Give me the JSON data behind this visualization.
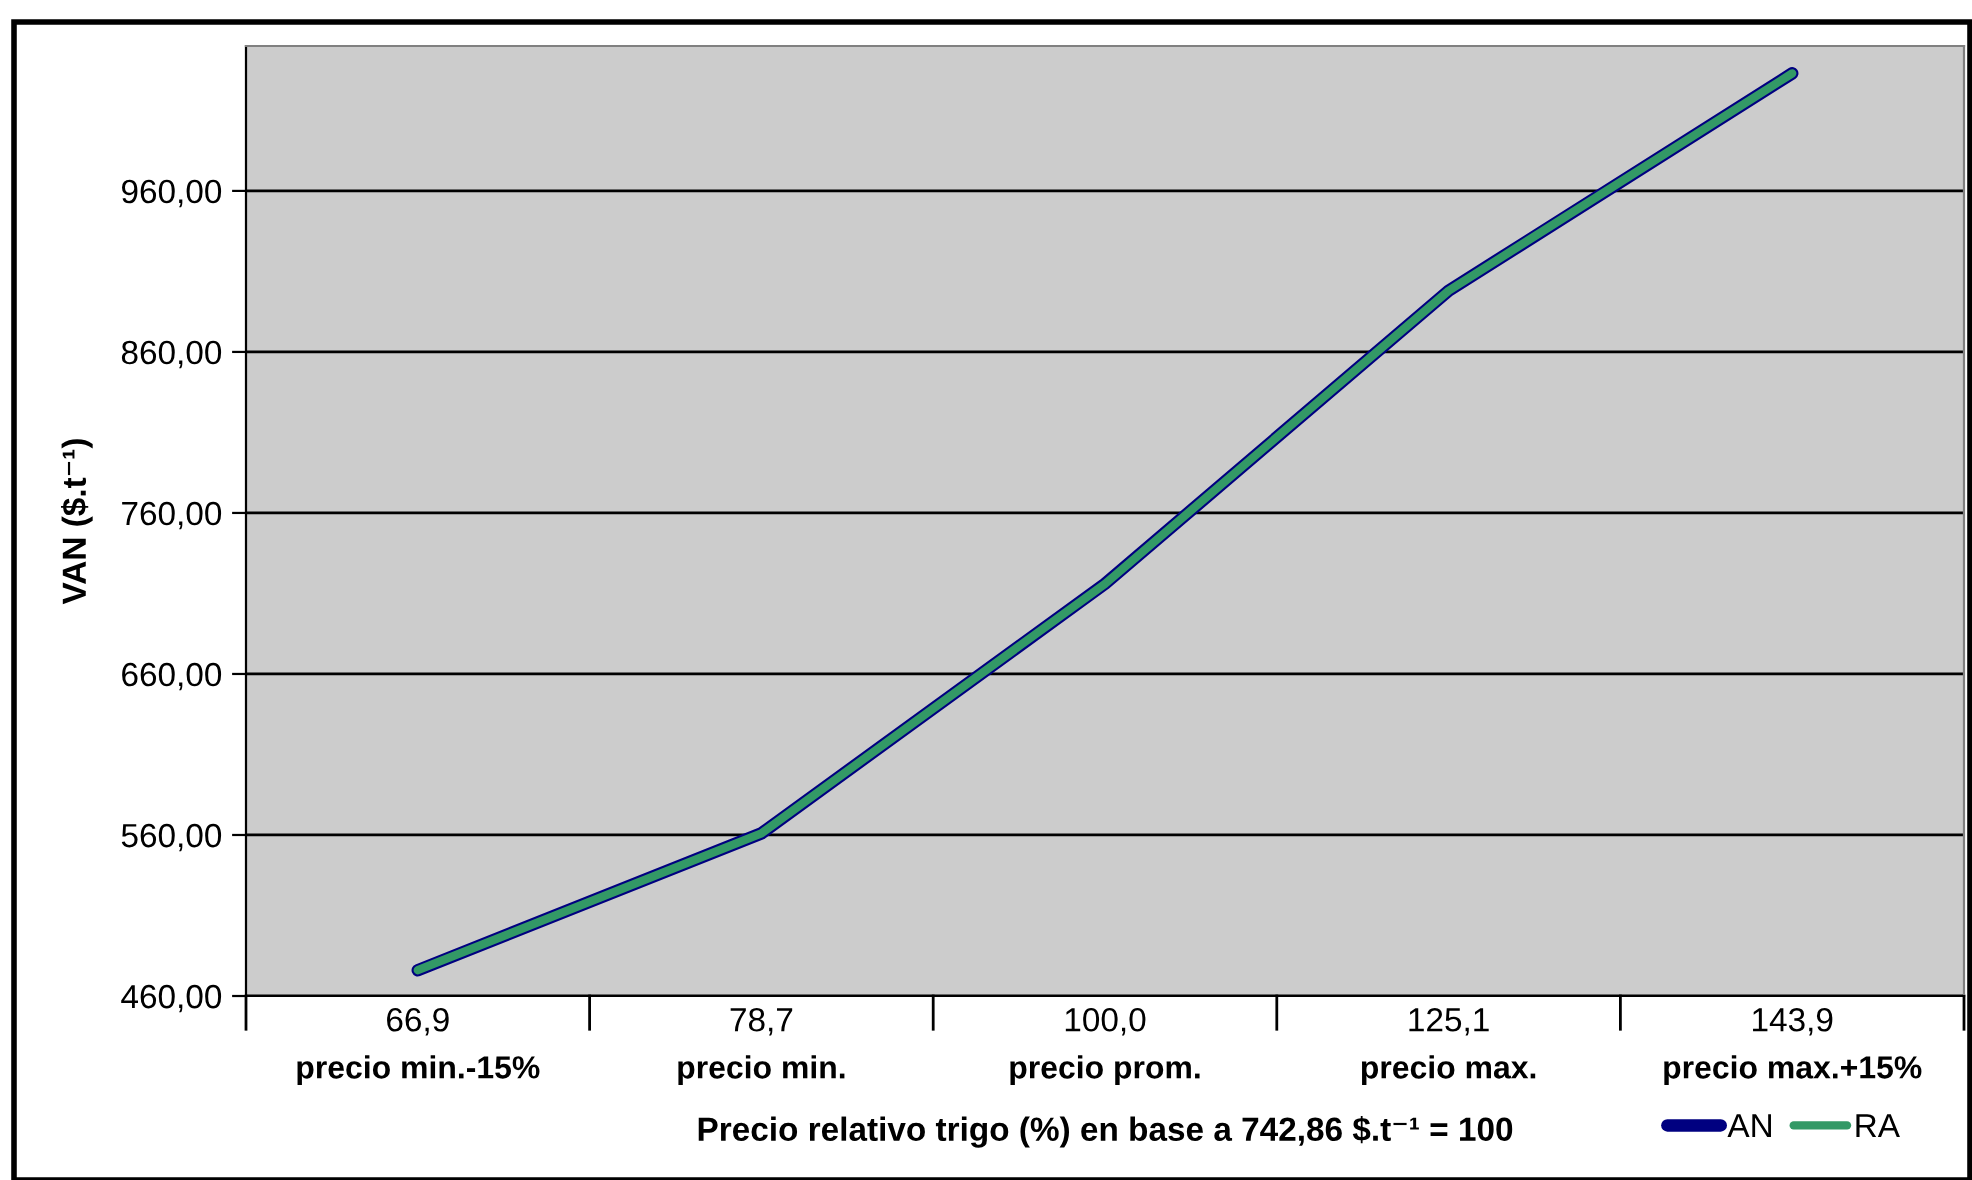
{
  "chart_data": {
    "type": "line",
    "xlabel": "Precio relativo trigo (%) en base a 742,86 $.t⁻¹ = 100",
    "ylabel": "VAN ($.t⁻¹)",
    "categories": [
      "66,9\nprecio min.-15%",
      "78,7\nprecio min.",
      "100,0\nprecio prom.",
      "125,1\nprecio max.",
      "143,9\nprecio max.+15%"
    ],
    "series": [
      {
        "name": "AN",
        "color": "#000080",
        "values": [
          476,
          561,
          716,
          898,
          1033
        ]
      },
      {
        "name": "RA",
        "color": "#339966",
        "values": [
          476,
          561,
          716,
          898,
          1033
        ]
      }
    ],
    "ylim": [
      460,
      1050
    ],
    "yticks": [
      {
        "value": 460,
        "label": "460,00"
      },
      {
        "value": 560,
        "label": "560,00"
      },
      {
        "value": 660,
        "label": "660,00"
      },
      {
        "value": 760,
        "label": "760,00"
      },
      {
        "value": 860,
        "label": "860,00"
      },
      {
        "value": 960,
        "label": "960,00"
      }
    ],
    "grid": "y",
    "legend": "bottom right",
    "marker": "none",
    "line_style": "solid"
  }
}
